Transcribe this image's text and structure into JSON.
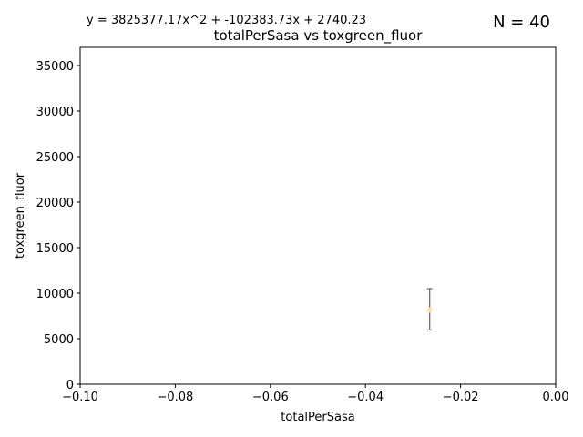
{
  "chart_data": {
    "type": "scatter",
    "title": "totalPerSasa vs toxgreen_fluor",
    "xlabel": "totalPerSasa",
    "ylabel": "toxgreen_fluor",
    "equation": "y = 3825377.17x^2 + -102383.73x + 2740.23",
    "n_label": "N = 40",
    "xlim": [
      -0.1,
      0.0
    ],
    "ylim": [
      0,
      37000
    ],
    "x_ticks": [
      -0.1,
      -0.08,
      -0.06,
      -0.04,
      -0.02,
      0.0
    ],
    "x_tick_labels": [
      "−0.10",
      "−0.08",
      "−0.06",
      "−0.04",
      "−0.02",
      "0.00"
    ],
    "y_ticks": [
      0,
      5000,
      10000,
      15000,
      20000,
      25000,
      30000,
      35000
    ],
    "y_tick_labels": [
      "0",
      "5000",
      "10000",
      "15000",
      "20000",
      "25000",
      "30000",
      "35000"
    ],
    "grid": false,
    "points": [
      {
        "x": -0.0265,
        "y": 8150,
        "yerr_low": 5950,
        "yerr_high": 10500
      }
    ],
    "colors": {
      "point": "#fce4a8",
      "errorbar": "#6e6e6e",
      "axes": "#000000"
    }
  }
}
